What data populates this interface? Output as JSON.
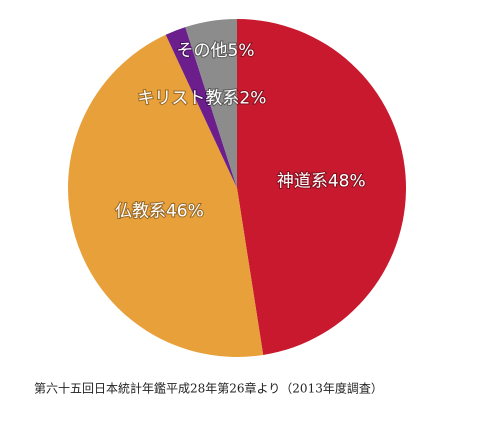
{
  "chart_data": {
    "type": "pie",
    "categories": [
      "神道系",
      "仏教系",
      "キリスト教系",
      "その他"
    ],
    "values": [
      48,
      46,
      2,
      5
    ],
    "value_labels": [
      "48%",
      "46%",
      "2%",
      "5%"
    ],
    "colors": [
      "#c8192e",
      "#e8a03a",
      "#6b1e8c",
      "#8c8c8c"
    ],
    "source": "第六十五回日本統計年鑑平成28年第26章より（2013年度調査）"
  }
}
